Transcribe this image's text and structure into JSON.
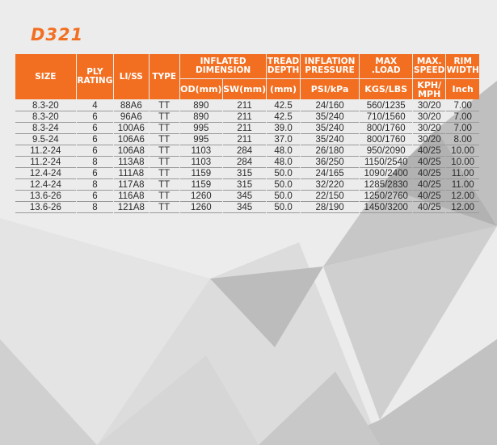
{
  "colors": {
    "accent": "#f26f21",
    "background": "#ececec",
    "text": "#2b2b2b"
  },
  "model": "D321",
  "headers": {
    "size": "SIZE",
    "ply_rating": "PLY RATING",
    "li_ss": "LI/SS",
    "type": "TYPE",
    "inflated_dimension": "INFLATED DIMENSION",
    "od": "OD(mm)",
    "sw": "SW(mm)",
    "tread_depth": "TREAD DEPTH",
    "tread_depth_unit": "(mm)",
    "inflation_pressure": "INFLATION PRESSURE",
    "inflation_pressure_unit": "PSI/kPa",
    "max_load": "MAX .LOAD",
    "max_load_unit": "KGS/LBS",
    "max_speed": "MAX. SPEED",
    "max_speed_unit": "KPH/ MPH",
    "rim_width": "RIM WIDTH",
    "rim_width_unit": "Inch"
  },
  "rows": [
    {
      "size": "8.3-20",
      "ply": "4",
      "liss": "88A6",
      "type": "TT",
      "od": "890",
      "sw": "211",
      "tread": "42.5",
      "pressure": "24/160",
      "load": "560/1235",
      "speed": "30/20",
      "rim": "7.00"
    },
    {
      "size": "8.3-20",
      "ply": "6",
      "liss": "96A6",
      "type": "TT",
      "od": "890",
      "sw": "211",
      "tread": "42.5",
      "pressure": "35/240",
      "load": "710/1560",
      "speed": "30/20",
      "rim": "7.00"
    },
    {
      "size": "8.3-24",
      "ply": "6",
      "liss": "100A6",
      "type": "TT",
      "od": "995",
      "sw": "211",
      "tread": "39.0",
      "pressure": "35/240",
      "load": "800/1760",
      "speed": "30/20",
      "rim": "7.00"
    },
    {
      "size": "9.5-24",
      "ply": "6",
      "liss": "106A6",
      "type": "TT",
      "od": "995",
      "sw": "211",
      "tread": "37.0",
      "pressure": "35/240",
      "load": "800/1760",
      "speed": "30/20",
      "rim": "8.00"
    },
    {
      "size": "11.2-24",
      "ply": "6",
      "liss": "106A8",
      "type": "TT",
      "od": "1103",
      "sw": "284",
      "tread": "48.0",
      "pressure": "26/180",
      "load": "950/2090",
      "speed": "40/25",
      "rim": "10.00"
    },
    {
      "size": "11.2-24",
      "ply": "8",
      "liss": "113A8",
      "type": "TT",
      "od": "1103",
      "sw": "284",
      "tread": "48.0",
      "pressure": "36/250",
      "load": "1150/2540",
      "speed": "40/25",
      "rim": "10.00"
    },
    {
      "size": "12.4-24",
      "ply": "6",
      "liss": "111A8",
      "type": "TT",
      "od": "1159",
      "sw": "315",
      "tread": "50.0",
      "pressure": "24/165",
      "load": "1090/2400",
      "speed": "40/25",
      "rim": "11.00"
    },
    {
      "size": "12.4-24",
      "ply": "8",
      "liss": "117A8",
      "type": "TT",
      "od": "1159",
      "sw": "315",
      "tread": "50.0",
      "pressure": "32/220",
      "load": "1285/2830",
      "speed": "40/25",
      "rim": "11.00"
    },
    {
      "size": "13.6-26",
      "ply": "6",
      "liss": "116A8",
      "type": "TT",
      "od": "1260",
      "sw": "345",
      "tread": "50.0",
      "pressure": "22/150",
      "load": "1250/2760",
      "speed": "40/25",
      "rim": "12.00"
    },
    {
      "size": "13.6-26",
      "ply": "8",
      "liss": "121A8",
      "type": "TT",
      "od": "1260",
      "sw": "345",
      "tread": "50.0",
      "pressure": "28/190",
      "load": "1450/3200",
      "speed": "40/25",
      "rim": "12.00"
    }
  ]
}
